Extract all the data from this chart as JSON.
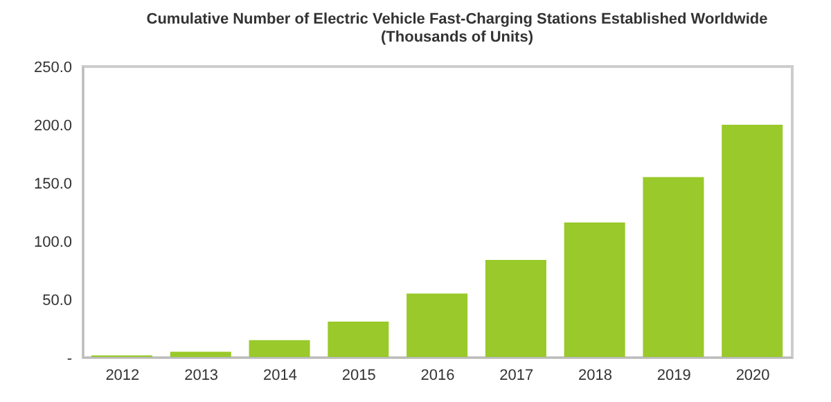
{
  "chart_data": {
    "type": "bar",
    "title": "Cumulative Number of Electric Vehicle Fast-Charging Stations Established Worldwide",
    "subtitle": "(Thousands of Units)",
    "categories": [
      "2012",
      "2013",
      "2014",
      "2015",
      "2016",
      "2017",
      "2018",
      "2019",
      "2020"
    ],
    "values": [
      2,
      5,
      15,
      31,
      55,
      84,
      116,
      155,
      200
    ],
    "color": "#99c92a",
    "ylim": [
      0,
      250
    ],
    "yticks": [
      {
        "value": 0,
        "label": "-"
      },
      {
        "value": 50,
        "label": "50.0"
      },
      {
        "value": 100,
        "label": "100.0"
      },
      {
        "value": 150,
        "label": "150.0"
      },
      {
        "value": 200,
        "label": "200.0"
      },
      {
        "value": 250,
        "label": "250.0"
      }
    ],
    "grid": false
  }
}
